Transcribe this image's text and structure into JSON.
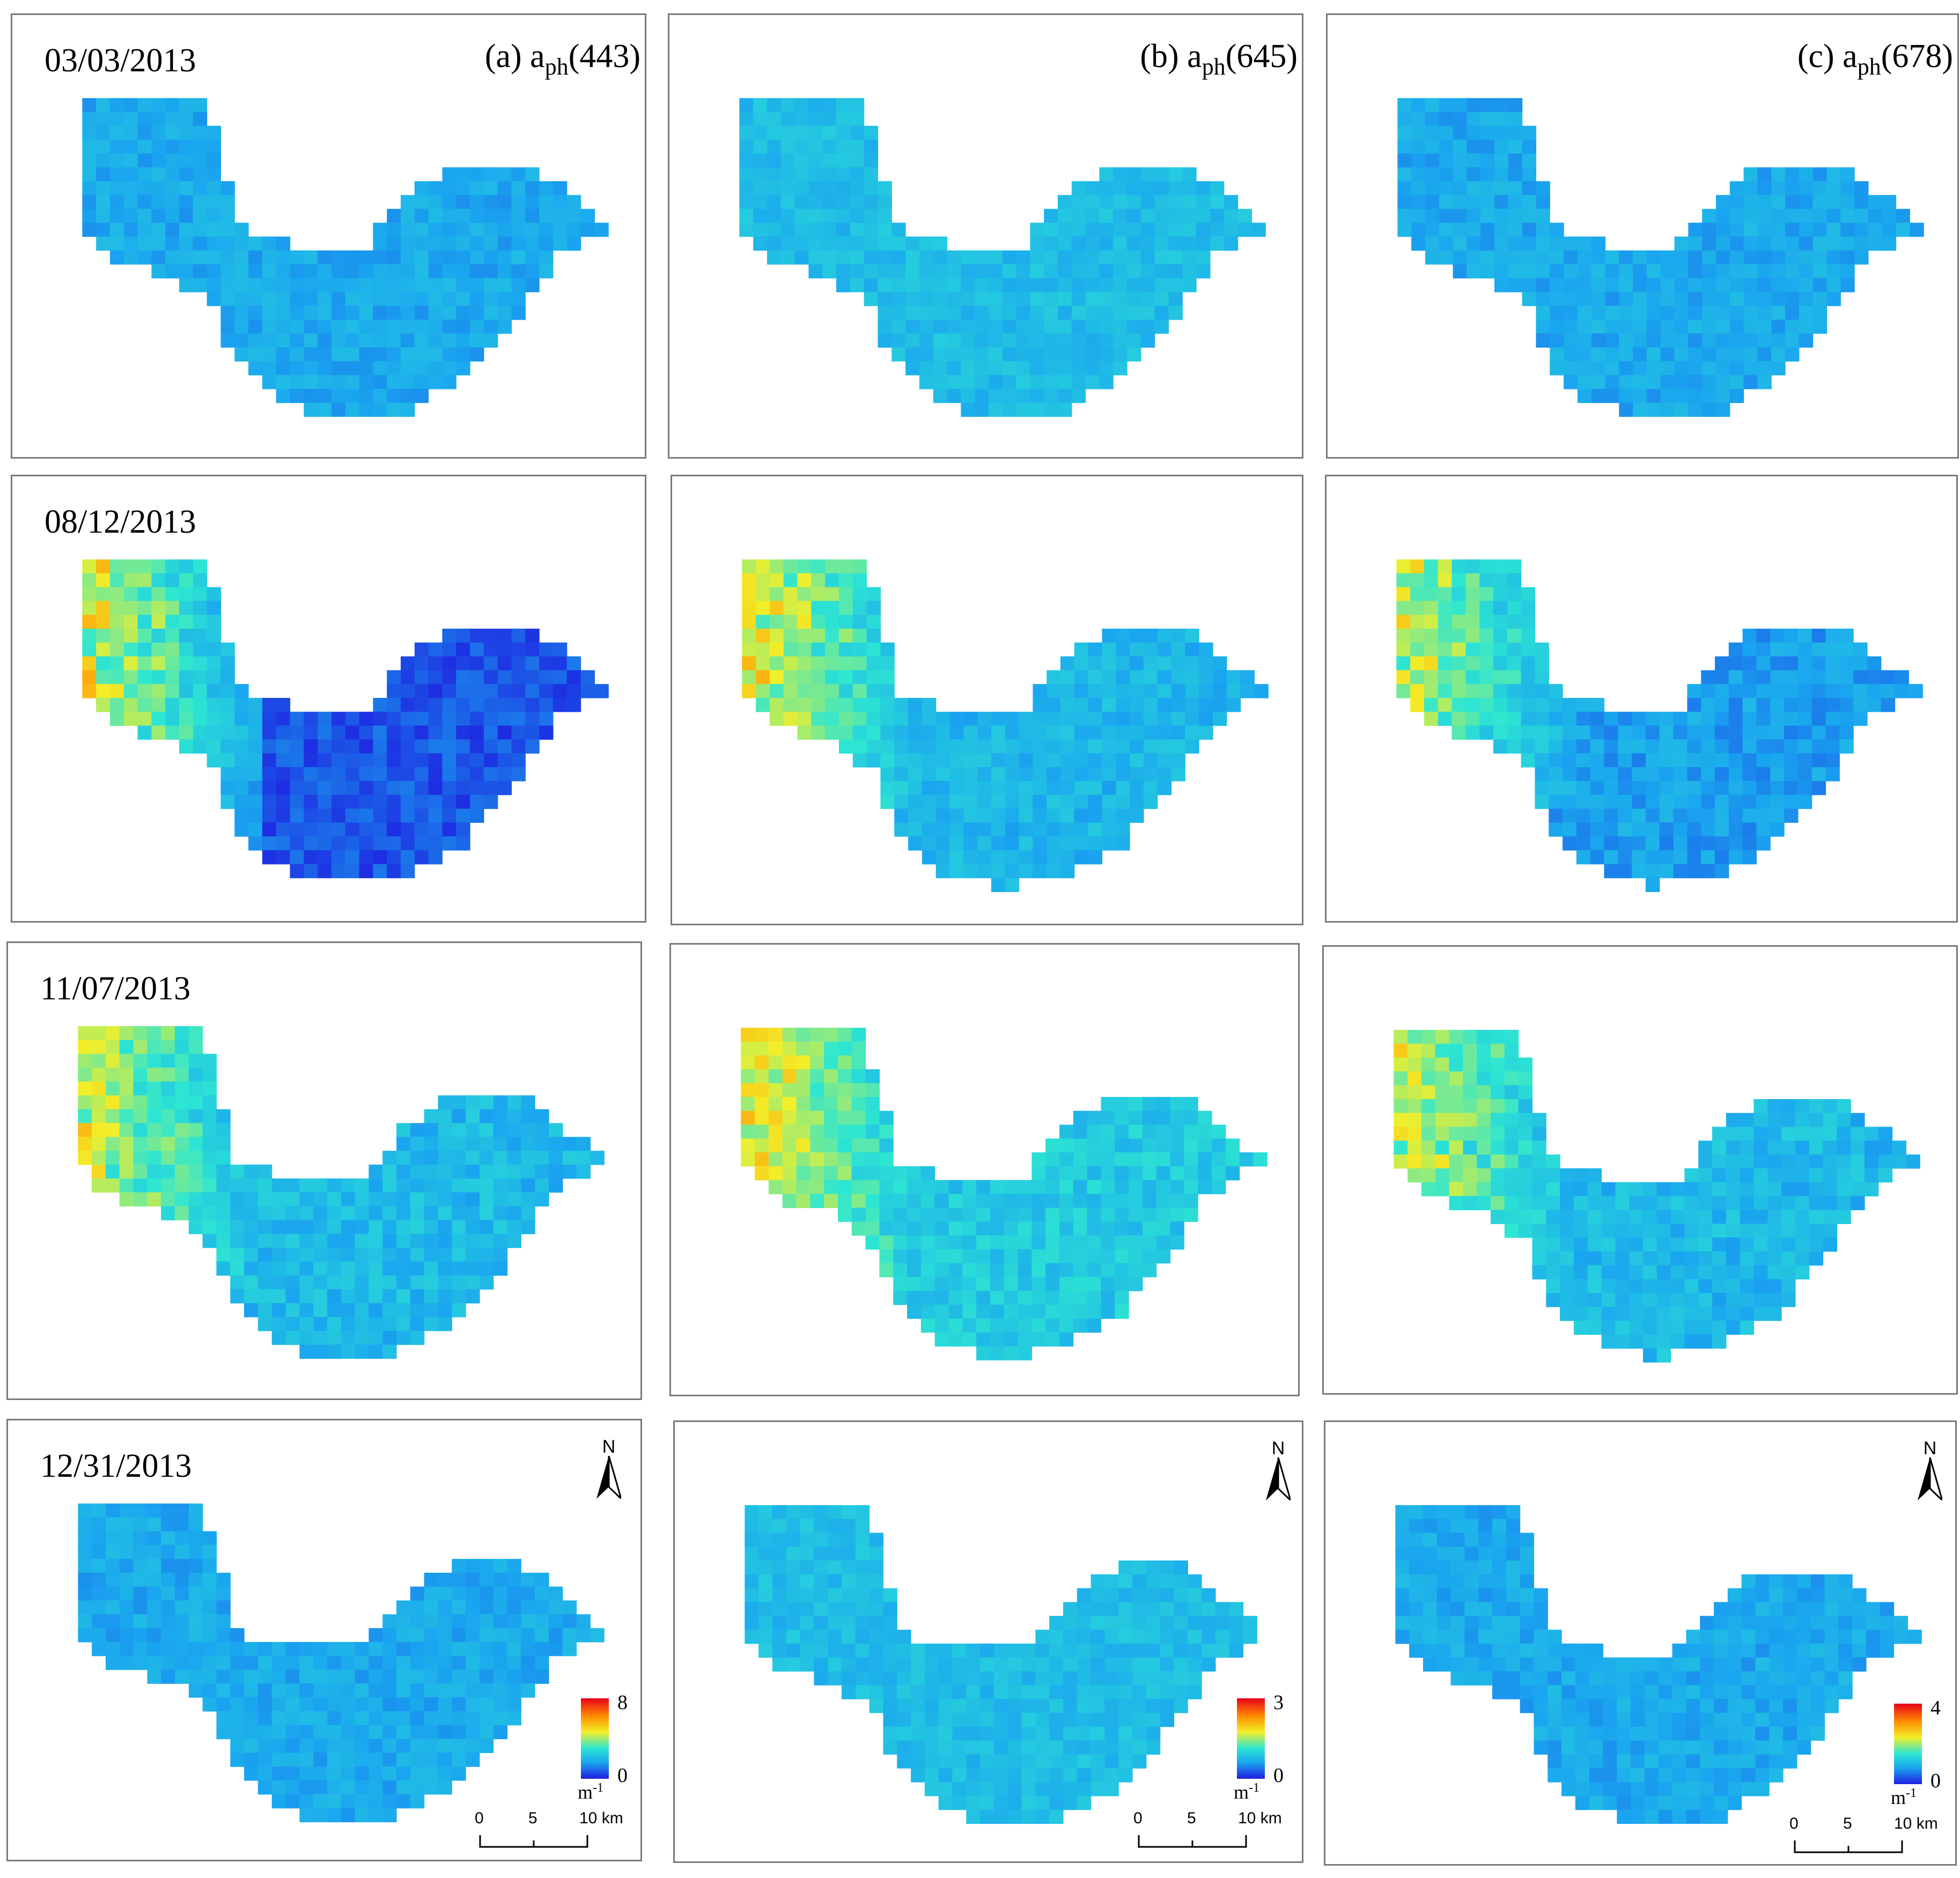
{
  "figure": {
    "columns": [
      {
        "id": "a",
        "label_prefix": "(a) a",
        "label_sub": "ph",
        "label_suffix": "(443)"
      },
      {
        "id": "b",
        "label_prefix": "(b) a",
        "label_sub": "ph",
        "label_suffix": "(645)"
      },
      {
        "id": "c",
        "label_prefix": "(c) a",
        "label_sub": "ph",
        "label_suffix": "(678)"
      }
    ],
    "rows": [
      {
        "date": "03/03/2013"
      },
      {
        "date": "08/12/2013"
      },
      {
        "date": "11/07/2013"
      },
      {
        "date": "12/31/2013"
      }
    ],
    "legends": [
      {
        "max": "8",
        "min": "0",
        "unit": "m",
        "unit_exp": "-1"
      },
      {
        "max": "3",
        "min": "0",
        "unit": "m",
        "unit_exp": "-1"
      },
      {
        "max": "4",
        "min": "0",
        "unit": "m",
        "unit_exp": "-1"
      }
    ],
    "north_label": "N",
    "scalebar": {
      "ticks": [
        "0",
        "5",
        "10 km"
      ]
    },
    "colors": {
      "low": "#1e1ee0",
      "mid_low": "#1aa5ef",
      "mid": "#2de6d2",
      "mid_high": "#f2ef2a",
      "high_orange": "#ff8c00",
      "high": "#e8001c",
      "panel_border": "#7a7a7a"
    }
  }
}
